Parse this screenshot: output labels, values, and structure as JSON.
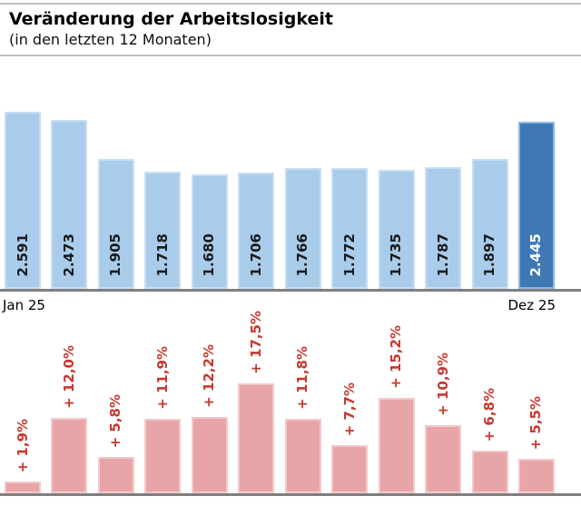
{
  "header": {
    "title": "Veränderung der Arbeitslosigkeit",
    "subtitle": "(in den letzten 12 Monaten)"
  },
  "x_axis": {
    "start_label": "Jan 25",
    "end_label": "Dez 25"
  },
  "colors": {
    "bar_blue": "#a9cceb",
    "bar_blue_border": "#c8def3",
    "bar_blue_highlight": "#3e79b5",
    "bar_blue_highlight_border": "#8fb6dd",
    "bar_pink": "#e8a5a7",
    "bar_pink_border": "#f3c9ca",
    "pct_label_red": "#c9372e",
    "value_label_dark": "#1a1a1a",
    "value_label_light": "#ffffff",
    "axis_line_gray": "#7f7f7f",
    "divider_gray": "#bfbfbf"
  },
  "chart_data": [
    {
      "type": "bar",
      "values": [
        2591,
        2473,
        1905,
        1718,
        1680,
        1706,
        1766,
        1772,
        1735,
        1787,
        1897,
        2445
      ],
      "value_labels": [
        "2.591",
        "2.473",
        "1.905",
        "1.718",
        "1.680",
        "1.706",
        "1.766",
        "1.772",
        "1.735",
        "1.787",
        "1.897",
        "2.445"
      ],
      "x_tick_labels": [
        "Jan 25",
        "Dez 25"
      ],
      "highlight_index": 11,
      "ylim": [
        0,
        2600
      ],
      "grid": false,
      "legend": "none",
      "value_label_position": "inside-bottom",
      "value_label_rotation": 90
    },
    {
      "type": "bar",
      "values": [
        1.9,
        12.0,
        5.8,
        11.9,
        12.2,
        17.5,
        11.8,
        7.7,
        15.2,
        10.9,
        6.8,
        5.5
      ],
      "value_labels": [
        "+ 1,9%",
        "+ 12,0%",
        "+ 5,8%",
        "+ 11,9%",
        "+ 12,2%",
        "+ 17,5%",
        "+ 11,8%",
        "+ 7,7%",
        "+ 15,2%",
        "+ 10,9%",
        "+ 6,8%",
        "+ 5,5%"
      ],
      "ylim": [
        0,
        18
      ],
      "grid": false,
      "legend": "none",
      "value_label_position": "above",
      "value_label_rotation": 90
    }
  ]
}
